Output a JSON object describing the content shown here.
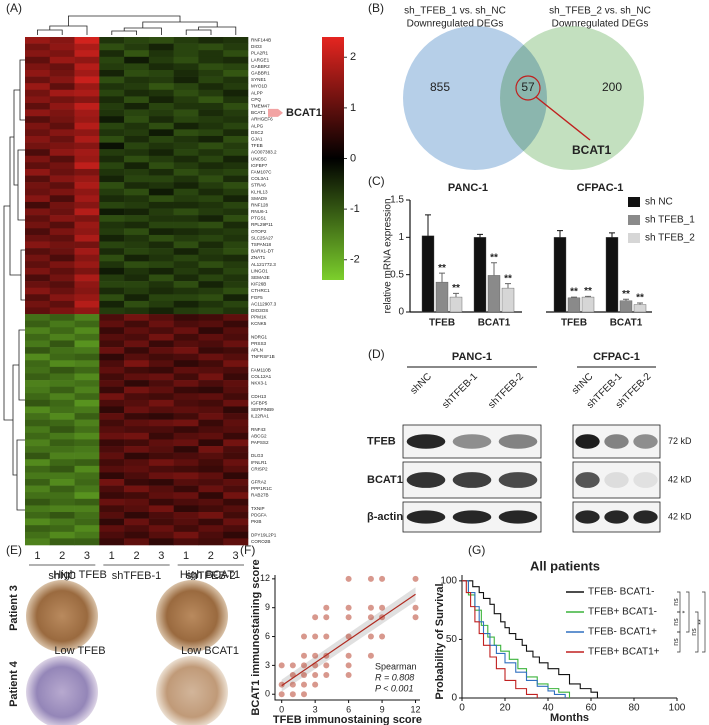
{
  "panel_labels": [
    "(A)",
    "(B)",
    "(C)",
    "(D)",
    "(E)",
    "(F)",
    "(G)"
  ],
  "heatmap": {
    "groups": [
      {
        "name": "shNC",
        "samples": [
          "1",
          "2",
          "3"
        ]
      },
      {
        "name": "shTFEB-1",
        "samples": [
          "1",
          "2",
          "3"
        ]
      },
      {
        "name": "shTFEB-2",
        "samples": [
          "1",
          "2",
          "3"
        ]
      }
    ],
    "highlight": "BCAT1",
    "colorbar": {
      "lim": [
        -2.4,
        2.4
      ],
      "ticks": [
        2,
        1,
        0,
        -1,
        -2
      ],
      "colors": [
        "#7ccf2c",
        "#000000",
        "#e52520"
      ]
    },
    "genes": [
      "RNF144B",
      "DIO3",
      "PLA2R1",
      "LARGE1",
      "GABBR2",
      "GABBR1",
      "SYNE1",
      "MYO1D",
      "ALPP",
      "CPQ",
      "TMEM47",
      "BCAT1",
      "ARHGEF6",
      "ALPG",
      "DSC2",
      "GJA1",
      "TFEB",
      "AC007383.2",
      "UNC5C",
      "IGFBP7",
      "FAM107C",
      "COL3A1",
      "STRA6",
      "KLHL13",
      "SMAD9",
      "RNF128",
      "RNU6-1",
      "PTGS1",
      "RPL29P11",
      "OTOP2",
      "SLC25A27",
      "TSPAN18",
      "BARX1-DT",
      "ZNAT1",
      "AL121772.3",
      "LINGO1",
      "SEMA3E",
      "KIF26B",
      "CTHRC1",
      "FGF5",
      "AC112907.3",
      "DIO3OS",
      "PPM1K",
      "KCNK5",
      null,
      "NDRG1",
      "PRSS3",
      "APLN",
      "TNFRSF1B",
      null,
      "FAM110B",
      "COL12A1",
      "NKX3-1",
      null,
      "CDH13",
      "IGFBP5",
      "SERPINB9",
      "IL22RA1",
      null,
      "RNF43",
      "ABCG2",
      "PAPSS2",
      null,
      "DLG3",
      "IFNLR1",
      "CRISP2",
      null,
      "GFRA2",
      "PPP1R1C",
      "RAB27B",
      null,
      "TXNIP",
      "PDGFA",
      "PKIB",
      null,
      "DPY19L2P1",
      "CORO2B"
    ],
    "matrix": [
      [
        1.6,
        1.4,
        2.2,
        -0.6,
        -0.8,
        -0.9,
        -0.7,
        -0.5,
        -0.6
      ],
      [
        1.2,
        1.5,
        1.8,
        -0.9,
        -0.7,
        -0.4,
        -0.8,
        -0.9,
        -0.7
      ],
      [
        1.4,
        1.3,
        2.0,
        -0.5,
        -1.0,
        -0.6,
        -0.8,
        -0.6,
        -0.9
      ],
      [
        1.0,
        1.6,
        1.5,
        -0.8,
        -0.3,
        -0.7,
        -0.9,
        -0.6,
        -0.5
      ],
      [
        1.3,
        1.1,
        1.9,
        -0.7,
        -0.8,
        -0.5,
        -0.6,
        -0.9,
        -0.8
      ],
      [
        1.5,
        1.2,
        1.7,
        -0.4,
        -0.9,
        -0.8,
        -0.5,
        -0.7,
        -1.0
      ],
      [
        1.1,
        1.4,
        2.1,
        -0.9,
        -0.6,
        -0.7,
        -0.4,
        -0.8,
        -0.6
      ],
      [
        1.6,
        1.0,
        1.6,
        -0.6,
        -0.7,
        -1.0,
        -0.8,
        -0.5,
        -0.7
      ],
      [
        1.2,
        1.7,
        1.8,
        -0.8,
        -0.5,
        -0.6,
        -0.9,
        -0.7,
        -0.4
      ],
      [
        1.4,
        1.2,
        1.4,
        -0.5,
        -0.9,
        -0.4,
        -0.7,
        -1.0,
        -0.6
      ],
      [
        1.0,
        1.5,
        2.0,
        -0.7,
        -0.4,
        -0.8,
        -0.6,
        -0.6,
        -0.9
      ],
      [
        1.5,
        1.3,
        1.7,
        -0.6,
        -0.8,
        -0.7,
        -0.9,
        -0.5,
        -0.7
      ],
      [
        0.9,
        1.2,
        1.6,
        -0.3,
        -0.9,
        -0.5,
        -0.8,
        -0.7,
        -0.6
      ],
      [
        1.3,
        1.0,
        1.9,
        -0.8,
        -0.6,
        -0.9,
        -0.4,
        -0.6,
        -0.8
      ],
      [
        1.1,
        1.4,
        1.5,
        -0.6,
        -0.7,
        -0.3,
        -0.9,
        -0.8,
        -0.5
      ],
      [
        1.4,
        1.1,
        1.8,
        -0.9,
        -0.5,
        -0.8,
        -0.6,
        -0.4,
        -0.9
      ],
      [
        1.2,
        1.3,
        1.4,
        -0.2,
        -0.8,
        -0.6,
        -0.7,
        -0.9,
        -0.7
      ],
      [
        0.8,
        1.5,
        1.7,
        -0.7,
        -0.6,
        -0.4,
        -0.8,
        -0.6,
        -0.8
      ],
      [
        1.3,
        0.9,
        1.6,
        -0.5,
        -0.9,
        -0.7,
        -0.5,
        -0.8,
        -0.4
      ],
      [
        1.0,
        1.2,
        2.0,
        -0.8,
        -0.4,
        -0.9,
        -0.7,
        -0.5,
        -0.6
      ],
      [
        1.5,
        1.1,
        1.3,
        -0.6,
        -0.7,
        -0.5,
        -0.9,
        -0.7,
        -0.8
      ],
      [
        0.9,
        1.4,
        1.6,
        -0.4,
        -0.8,
        -0.8,
        -0.6,
        -0.9,
        -0.5
      ],
      [
        1.2,
        1.0,
        1.8,
        -0.9,
        -0.5,
        -0.6,
        -0.4,
        -0.7,
        -0.9
      ],
      [
        1.1,
        1.3,
        1.5,
        -0.7,
        -0.9,
        -0.3,
        -0.8,
        -0.5,
        -0.7
      ],
      [
        1.4,
        0.8,
        1.7,
        -0.5,
        -0.6,
        -0.9,
        -0.7,
        -0.8,
        -0.4
      ],
      [
        0.7,
        1.2,
        1.4,
        -0.8,
        -0.7,
        -0.5,
        -0.5,
        -0.6,
        -0.8
      ],
      [
        1.3,
        1.1,
        1.9,
        -0.3,
        -0.4,
        -0.7,
        -0.9,
        -0.7,
        -0.6
      ],
      [
        1.0,
        1.4,
        1.3,
        -0.9,
        -0.8,
        -0.6,
        -0.6,
        -0.4,
        -0.9
      ],
      [
        1.2,
        0.9,
        1.6,
        -0.6,
        -0.5,
        -0.8,
        -0.8,
        -0.9,
        -0.5
      ],
      [
        0.8,
        1.3,
        1.5,
        -0.7,
        -0.9,
        -0.4,
        -0.5,
        -0.6,
        -0.7
      ],
      [
        1.1,
        1.0,
        1.8,
        -0.4,
        -0.6,
        -0.9,
        -0.7,
        -0.8,
        -0.6
      ],
      [
        1.4,
        1.2,
        1.2,
        -0.8,
        -0.7,
        -0.5,
        -0.9,
        -0.5,
        -0.8
      ],
      [
        0.9,
        1.1,
        1.7,
        -0.5,
        -0.8,
        -0.7,
        -0.4,
        -0.7,
        -0.9
      ],
      [
        1.2,
        0.8,
        1.4,
        -0.9,
        -0.4,
        -0.6,
        -0.8,
        -0.6,
        -0.5
      ],
      [
        1.0,
        1.3,
        1.6,
        -0.6,
        -0.9,
        -0.8,
        -0.6,
        -0.9,
        -0.7
      ],
      [
        1.3,
        1.0,
        1.3,
        -0.3,
        -0.6,
        -0.4,
        -0.7,
        -0.5,
        -0.8
      ],
      [
        0.8,
        1.2,
        1.8,
        -0.7,
        -0.5,
        -0.9,
        -0.5,
        -0.8,
        -0.6
      ],
      [
        1.1,
        0.9,
        1.5,
        -0.8,
        -0.8,
        -0.6,
        -0.9,
        -0.4,
        -0.7
      ],
      [
        1.4,
        1.1,
        1.4,
        -0.5,
        -0.7,
        -0.5,
        -0.6,
        -0.7,
        -0.9
      ],
      [
        0.9,
        1.4,
        1.6,
        -0.9,
        -0.4,
        -0.8,
        -0.8,
        -0.9,
        -0.4
      ],
      [
        1.2,
        1.0,
        1.9,
        -0.4,
        -0.9,
        -0.7,
        -0.4,
        -0.6,
        -0.8
      ],
      [
        1.0,
        1.3,
        1.5,
        -0.7,
        -0.6,
        -0.4,
        -0.7,
        -0.8,
        -0.6
      ],
      [
        -1.3,
        -1.1,
        -1.5,
        0.8,
        1.2,
        0.9,
        0.6,
        0.7,
        1.0
      ],
      [
        -1.1,
        -1.4,
        -1.2,
        1.0,
        0.7,
        1.1,
        0.8,
        0.9,
        0.6
      ],
      [
        -1.5,
        -1.2,
        -1.6,
        0.6,
        1.0,
        0.8,
        1.1,
        0.5,
        0.9
      ],
      [
        -1.2,
        -1.5,
        -1.3,
        0.9,
        0.8,
        1.2,
        0.7,
        1.0,
        0.8
      ],
      [
        -1.4,
        -1.0,
        -1.7,
        0.7,
        1.1,
        0.6,
        0.9,
        0.8,
        1.1
      ],
      [
        -1.0,
        -1.3,
        -1.4,
        1.1,
        0.6,
        1.0,
        1.2,
        0.6,
        0.7
      ],
      [
        -1.6,
        -1.2,
        -1.1,
        0.5,
        0.9,
        0.7,
        0.8,
        1.1,
        0.9
      ],
      [
        -1.2,
        -1.6,
        -1.5,
        0.8,
        1.3,
        0.9,
        0.5,
        0.7,
        1.2
      ],
      [
        -1.3,
        -1.0,
        -1.2,
        1.0,
        0.7,
        0.6,
        1.0,
        0.9,
        0.8
      ],
      [
        -1.1,
        -1.3,
        -1.6,
        0.7,
        1.0,
        1.1,
        0.7,
        1.2,
        0.6
      ],
      [
        -1.5,
        -1.4,
        -1.3,
        0.9,
        0.5,
        0.8,
        1.1,
        0.8,
        1.0
      ],
      [
        -1.4,
        -1.1,
        -1.5,
        0.6,
        1.2,
        1.0,
        0.6,
        0.5,
        0.9
      ],
      [
        -1.2,
        -1.5,
        -1.2,
        1.2,
        0.8,
        0.7,
        0.9,
        1.0,
        0.7
      ],
      [
        -1.0,
        -1.2,
        -1.7,
        0.8,
        0.9,
        1.2,
        0.8,
        0.7,
        1.1
      ],
      [
        -1.6,
        -1.3,
        -1.4,
        0.5,
        1.1,
        0.9,
        1.0,
        0.9,
        0.5
      ],
      [
        -1.3,
        -1.6,
        -1.1,
        1.0,
        0.6,
        0.5,
        0.7,
        1.1,
        0.8
      ],
      [
        -1.1,
        -1.2,
        -1.5,
        0.7,
        1.0,
        1.1,
        1.2,
        0.6,
        1.0
      ],
      [
        -1.4,
        -1.0,
        -1.3,
        0.9,
        0.8,
        0.8,
        0.6,
        0.8,
        0.9
      ],
      [
        -1.2,
        -1.4,
        -1.6,
        1.1,
        1.2,
        0.6,
        0.9,
        1.0,
        0.6
      ],
      [
        -1.5,
        -1.1,
        -1.2,
        0.6,
        0.7,
        1.0,
        1.1,
        0.5,
        1.2
      ],
      [
        -1.3,
        -1.3,
        -1.4,
        0.8,
        1.1,
        0.9,
        0.5,
        1.2,
        0.8
      ],
      [
        -1.0,
        -1.5,
        -1.5,
        1.0,
        0.5,
        0.7,
        0.8,
        0.9,
        0.7
      ],
      [
        -1.6,
        -1.2,
        -1.1,
        0.7,
        0.9,
        1.2,
        1.0,
        0.7,
        1.1
      ],
      [
        -1.2,
        -1.0,
        -1.6,
        0.9,
        1.0,
        0.8,
        0.7,
        0.6,
        0.9
      ],
      [
        -1.4,
        -1.4,
        -1.3,
        0.5,
        0.8,
        1.1,
        1.2,
        1.0,
        0.5
      ],
      [
        -1.1,
        -1.6,
        -1.2,
        1.2,
        0.6,
        0.5,
        0.9,
        0.8,
        1.0
      ],
      [
        -1.5,
        -1.1,
        -1.4,
        0.8,
        1.2,
        0.9,
        0.6,
        1.1,
        0.8
      ],
      [
        -1.3,
        -1.3,
        -1.7,
        0.6,
        0.7,
        1.0,
        1.1,
        0.5,
        1.2
      ],
      [
        -1.0,
        -1.2,
        -1.1,
        1.1,
        1.0,
        0.6,
        0.8,
        0.9,
        0.6
      ],
      [
        -1.4,
        -1.5,
        -1.5,
        0.7,
        0.9,
        1.2,
        0.5,
        0.7,
        0.9
      ],
      [
        -1.2,
        -1.0,
        -1.3,
        0.9,
        0.5,
        0.8,
        1.0,
        1.2,
        0.7
      ],
      [
        -1.6,
        -1.4,
        -1.2,
        0.5,
        1.1,
        0.7,
        0.9,
        0.6,
        1.1
      ],
      [
        -1.1,
        -1.2,
        -1.6,
        1.0,
        0.8,
        1.1,
        0.7,
        1.0,
        0.8
      ],
      [
        -1.3,
        -1.6,
        -1.4,
        0.8,
        0.6,
        0.9,
        1.2,
        0.8,
        0.5
      ],
      [
        -1.5,
        -1.1,
        -1.1,
        0.6,
        1.0,
        0.5,
        0.8,
        0.7,
        1.0
      ]
    ]
  },
  "venn": {
    "sets": [
      {
        "title": "sh_TFEB_1 vs. sh_NC",
        "subtitle": "Downregulated DEGs",
        "color": "#a9c7e4",
        "text_color": "#4a86c8"
      },
      {
        "title": "sh_TFEB_2 vs. sh_NC",
        "subtitle": "Downregulated DEGs",
        "color": "#b9dbb4",
        "text_color": "#4f9b4c"
      }
    ],
    "only_a": 855,
    "both": 57,
    "only_b": 200,
    "highlight": "BCAT1"
  },
  "bar_chart": {
    "type": "bar",
    "ylabel": "relative mRNA expression",
    "ylim": [
      0,
      1.5
    ],
    "yticks": [
      0,
      0.5,
      1,
      1.5
    ],
    "groups": [
      "PANC-1",
      "CFPAC-1"
    ],
    "categories": [
      "TFEB",
      "BCAT1",
      "TFEB",
      "BCAT1"
    ],
    "series": [
      {
        "name": "sh NC",
        "color": "#111111",
        "values": [
          1.02,
          1.0,
          1.0,
          1.0
        ],
        "errors": [
          0.28,
          0.04,
          0.09,
          0.06
        ]
      },
      {
        "name": "sh TFEB_1",
        "color": "#8a8a8a",
        "values": [
          0.4,
          0.49,
          0.19,
          0.15
        ],
        "errors": [
          0.12,
          0.17,
          0.01,
          0.02
        ],
        "annotations": [
          "**",
          "**",
          "**",
          "**"
        ]
      },
      {
        "name": "sh TFEB_2",
        "color": "#d6d6d6",
        "values": [
          0.2,
          0.32,
          0.2,
          0.1
        ],
        "errors": [
          0.05,
          0.06,
          0.01,
          0.02
        ],
        "annotations": [
          "**",
          "**",
          "**",
          "**"
        ]
      }
    ]
  },
  "blot": {
    "cell_lines": [
      "PANC-1",
      "CFPAC-1"
    ],
    "lanes": [
      "shNC",
      "shTFEB-1",
      "shTFEB-2"
    ],
    "rows": [
      {
        "name": "TFEB",
        "size": "72 kD"
      },
      {
        "name": "BCAT1",
        "size": "42 kD"
      },
      {
        "name": "β-actin",
        "size": "42 kD"
      }
    ]
  },
  "ihc": {
    "patients": [
      "Patient 3",
      "Patient 4"
    ],
    "images": [
      [
        "High TFEB",
        "High BCAT1"
      ],
      [
        "Low TFEB",
        "Low BCAT1"
      ]
    ]
  },
  "scatter": {
    "type": "scatter",
    "xlabel": "TFEB immunostaining score",
    "ylabel": "BCAT1 immunostaining score",
    "xlim": [
      -0.6,
      12.4
    ],
    "ylim": [
      -0.6,
      12.4
    ],
    "xticks": [
      0,
      3,
      6,
      9,
      12
    ],
    "yticks": [
      0,
      3,
      6,
      9,
      12
    ],
    "color": "#b8432f",
    "x": [
      0,
      0,
      1,
      1,
      1,
      2,
      2,
      2,
      2,
      2,
      3,
      3,
      3,
      3,
      3,
      4,
      4,
      4,
      4,
      4,
      6,
      6,
      6,
      6,
      6,
      6,
      8,
      8,
      8,
      8,
      9,
      9,
      9,
      9,
      12,
      12,
      12,
      0,
      1,
      2,
      3,
      6,
      8,
      4
    ],
    "y": [
      0,
      1,
      0,
      1,
      2,
      0,
      1,
      2,
      3,
      4,
      1,
      2,
      3,
      4,
      6,
      2,
      3,
      4,
      6,
      8,
      3,
      4,
      6,
      8,
      9,
      12,
      4,
      6,
      8,
      9,
      6,
      8,
      9,
      12,
      8,
      9,
      12,
      3,
      3,
      6,
      8,
      2,
      12,
      9
    ],
    "fit": {
      "x": [
        0,
        12
      ],
      "y": [
        0.9,
        10.4
      ]
    },
    "stats": [
      "Spearman",
      "R = 0.808",
      "P < 0.001"
    ]
  },
  "survival": {
    "type": "line",
    "title": "All patients",
    "xlabel": "Months",
    "ylabel": "Probability of Survival",
    "xlim": [
      0,
      100
    ],
    "ylim": [
      0,
      105
    ],
    "xticks": [
      0,
      20,
      40,
      60,
      80,
      100
    ],
    "yticks": [
      0,
      50,
      100
    ],
    "series": [
      {
        "name": "TFEB- BCAT1-",
        "color": "#111111",
        "x": [
          0,
          5,
          8,
          10,
          13,
          15,
          18,
          20,
          22,
          25,
          28,
          30,
          33,
          36,
          40,
          45,
          50,
          55,
          60,
          63
        ],
        "y": [
          100,
          95,
          90,
          85,
          80,
          72,
          65,
          60,
          55,
          50,
          45,
          40,
          35,
          30,
          25,
          20,
          12,
          8,
          5,
          0
        ]
      },
      {
        "name": "TFEB+ BCAT1-",
        "color": "#3cb43c",
        "x": [
          0,
          3,
          6,
          9,
          12,
          15,
          18,
          22,
          26,
          30,
          35,
          40,
          45,
          50
        ],
        "y": [
          100,
          88,
          75,
          62,
          52,
          45,
          40,
          33,
          25,
          18,
          12,
          8,
          5,
          0
        ]
      },
      {
        "name": "TFEB- BCAT1+",
        "color": "#3070c0",
        "x": [
          0,
          3,
          6,
          8,
          10,
          13,
          16,
          20,
          25,
          30,
          35,
          40,
          43,
          48
        ],
        "y": [
          100,
          90,
          78,
          65,
          55,
          45,
          38,
          30,
          22,
          15,
          10,
          6,
          3,
          0
        ]
      },
      {
        "name": "TFEB+ BCAT1+",
        "color": "#c02020",
        "x": [
          0,
          2,
          4,
          6,
          8,
          10,
          13,
          16,
          20,
          25,
          30,
          35
        ],
        "y": [
          100,
          90,
          78,
          65,
          55,
          45,
          35,
          25,
          15,
          8,
          3,
          0
        ]
      }
    ],
    "comparisons": [
      "ns",
      "ns",
      "ns",
      "*",
      "ns",
      "**"
    ]
  }
}
